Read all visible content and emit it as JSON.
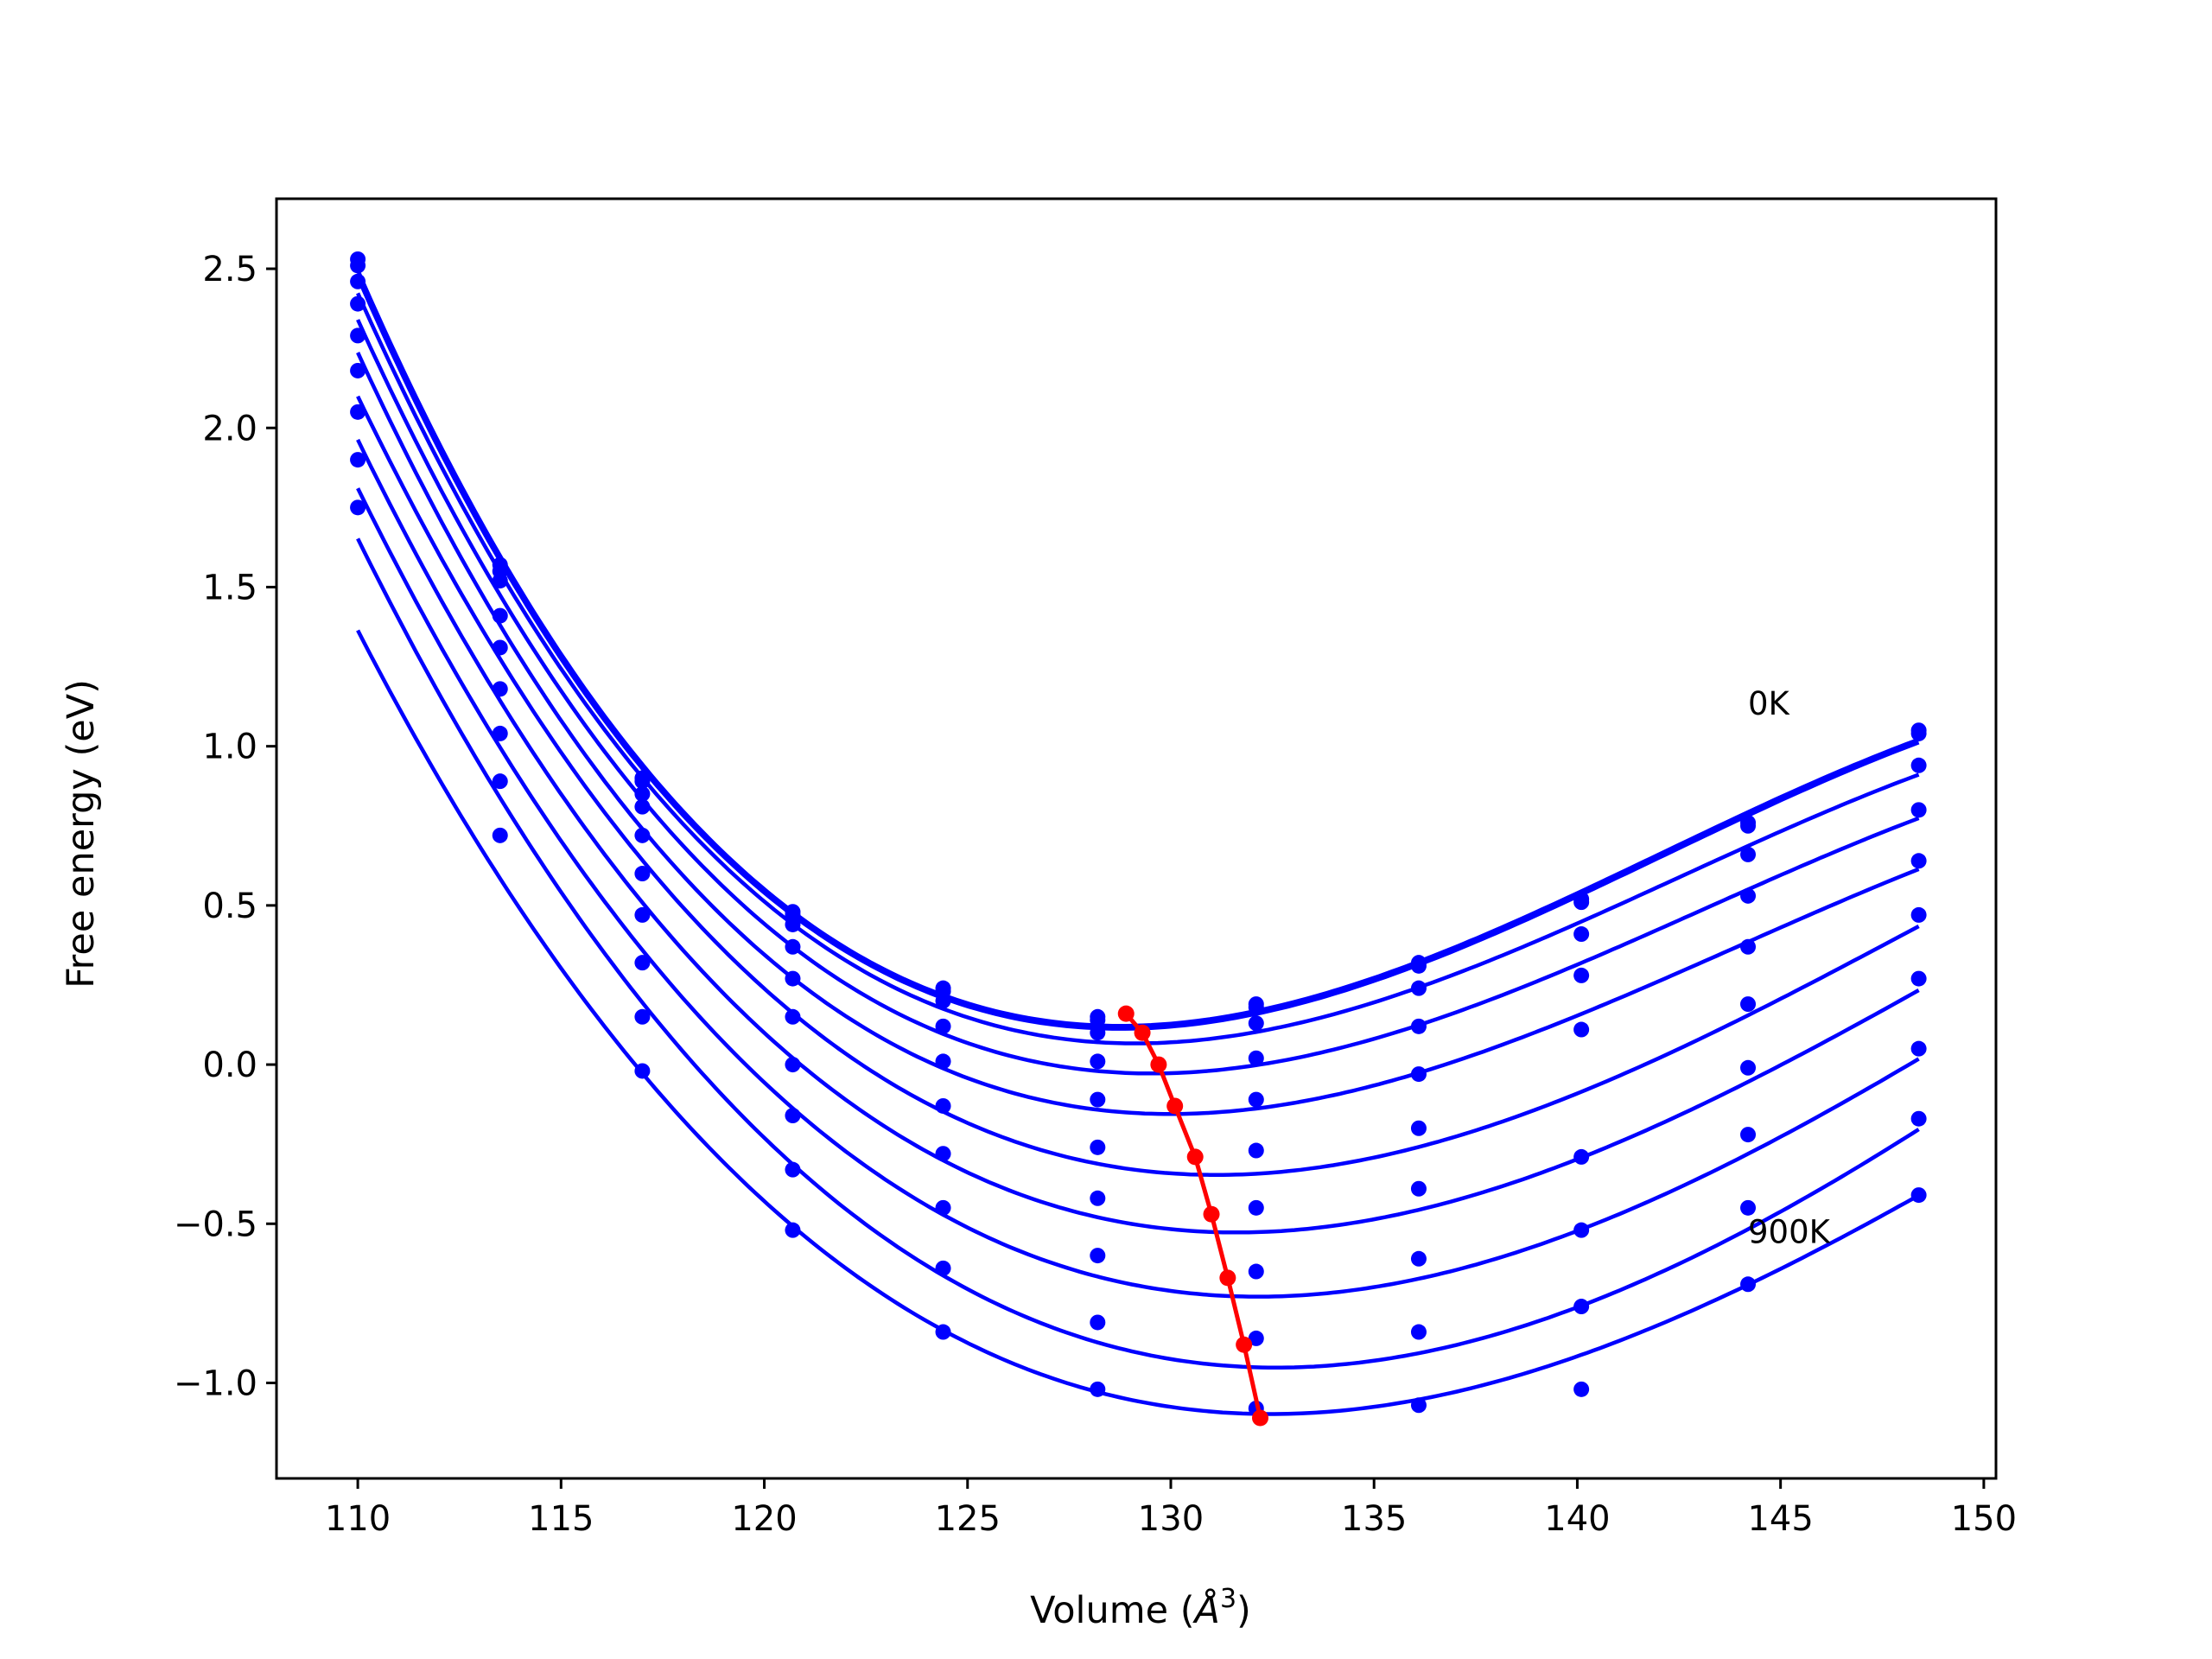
{
  "chart_data": {
    "type": "scatter",
    "xlabel": "Volume (",
    "xlabel_symbol": "Å",
    "xlabel_power": "3",
    "xlabel_close": ")",
    "ylabel": "Free energy (eV)",
    "xlim": [
      108,
      150.3
    ],
    "ylim": [
      -1.3,
      2.72
    ],
    "xticks": [
      110,
      115,
      120,
      125,
      130,
      135,
      140,
      145,
      150
    ],
    "xtick_labels": [
      "110",
      "115",
      "120",
      "125",
      "130",
      "135",
      "140",
      "145",
      "150"
    ],
    "yticks": [
      -1.0,
      -0.5,
      0.0,
      0.5,
      1.0,
      1.5,
      2.0,
      2.5
    ],
    "ytick_labels": [
      "−1.0",
      "−0.5",
      "0.0",
      "0.5",
      "1.0",
      "1.5",
      "2.0",
      "2.5"
    ],
    "grid": false,
    "legend": "none",
    "annotations": [
      {
        "text": "0K",
        "x": 144.2,
        "y": 1.1
      },
      {
        "text": "900K",
        "x": 144.2,
        "y": -0.56
      }
    ],
    "colors": {
      "curves": "#0000ff",
      "minimum_path": "#ff0000"
    },
    "volumes": [
      110.0,
      113.5,
      117.0,
      120.7,
      124.4,
      128.2,
      132.1,
      136.1,
      140.1,
      144.2,
      148.4
    ],
    "series": [
      {
        "values": [
          2.53,
          1.57,
          0.9,
          0.48,
          0.24,
          0.15,
          0.19,
          0.32,
          0.52,
          0.76,
          1.05
        ]
      },
      {
        "values": [
          2.51,
          1.55,
          0.89,
          0.47,
          0.23,
          0.14,
          0.18,
          0.31,
          0.51,
          0.75,
          1.04
        ]
      },
      {
        "values": [
          2.46,
          1.52,
          0.85,
          0.44,
          0.2,
          0.1,
          0.13,
          0.24,
          0.41,
          0.66,
          0.94
        ]
      },
      {
        "values": [
          2.39,
          1.41,
          0.81,
          0.37,
          0.12,
          0.01,
          0.02,
          0.12,
          0.28,
          0.53,
          0.8
        ]
      },
      {
        "values": [
          2.29,
          1.31,
          0.72,
          0.27,
          0.01,
          -0.11,
          -0.11,
          -0.03,
          0.11,
          0.37,
          0.64
        ]
      },
      {
        "values": [
          2.18,
          1.18,
          0.6,
          0.15,
          -0.13,
          -0.26,
          -0.27,
          -0.2,
          -0.29,
          0.19,
          0.47
        ]
      },
      {
        "values": [
          2.05,
          1.04,
          0.47,
          0.0,
          -0.28,
          -0.42,
          -0.45,
          -0.39,
          -0.52,
          -0.01,
          0.27
        ]
      },
      {
        "values": [
          1.9,
          0.89,
          0.32,
          -0.16,
          -0.45,
          -0.6,
          -0.65,
          -0.61,
          -0.76,
          -0.22,
          0.05
        ]
      },
      {
        "values": [
          1.75,
          0.72,
          0.15,
          -0.33,
          -0.64,
          -0.81,
          -0.86,
          -0.84,
          -1.02,
          -0.45,
          -0.17
        ]
      },
      {
        "values": [
          null,
          null,
          -0.02,
          -0.52,
          -0.84,
          -1.02,
          -1.08,
          -1.07,
          null,
          -0.69,
          -0.41
        ]
      }
    ],
    "minimum_path": {
      "x": [
        128.9,
        129.3,
        129.7,
        130.1,
        130.6,
        131.0,
        131.4,
        131.8,
        132.2
      ],
      "y": [
        0.16,
        0.1,
        0.0,
        -0.13,
        -0.29,
        -0.47,
        -0.67,
        -0.88,
        -1.11
      ]
    }
  }
}
